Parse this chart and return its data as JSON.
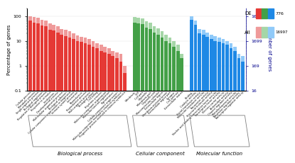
{
  "bp_labels": [
    "Cellular process",
    "Metabolic process",
    "Single-organism process",
    "Biological regulation",
    "Regulation of biological process",
    "Response to stimulus",
    "Localization",
    "Developmental process",
    "Multicellular organismal process",
    "Biological adhesion",
    "Cellular component organization or biogenesis",
    "Immune system process",
    "Locomotion",
    "Reproduction",
    "Reproductive process",
    "Multi-organism process",
    "Biological phase",
    "Cell killing",
    "Rhythmic process",
    "Molecular component organization",
    "Molecular function regulation",
    "Pigmentation",
    "Cellular component organization",
    "Molecular component involved in chemical symbiosis",
    "Prognostic process involved in chemical symbiosis"
  ],
  "bp_de": [
    65,
    55,
    52,
    42,
    38,
    28,
    26,
    22,
    18,
    16,
    14,
    12,
    10,
    9,
    8,
    7,
    6,
    5,
    4,
    3.5,
    3,
    2.5,
    2,
    1.5,
    0.5
  ],
  "bp_all": [
    100,
    90,
    85,
    72,
    65,
    50,
    45,
    38,
    30,
    28,
    24,
    20,
    17,
    15,
    14,
    12,
    10,
    8,
    7,
    6,
    5,
    4,
    3.5,
    3,
    1
  ],
  "cc_labels": [
    "Membrane",
    "Cell",
    "Cell part",
    "Organelle",
    "Membrane part",
    "Organelle part",
    "Macromolecular complex",
    "Extracellular region",
    "Membrane-enclosed lumen",
    "Extracellular region part",
    "Synapse",
    "Cell junction",
    "Extracellular matrix"
  ],
  "cc_de": [
    55,
    50,
    48,
    35,
    30,
    22,
    18,
    14,
    10,
    8,
    6,
    4,
    2
  ],
  "cc_all": [
    90,
    85,
    82,
    60,
    55,
    40,
    32,
    25,
    18,
    14,
    10,
    7,
    3
  ],
  "mf_labels": [
    "Binding",
    "Catalytic activity",
    "Signal transducer activity",
    "Molecular transducer activity",
    "Transporter activity",
    "Structural molecule activity",
    "Nucleic acid binding transcription factor activity",
    "Transcription factor activity",
    "Electron carrier activity",
    "Antioxidant activity",
    "Channel regulator activity",
    "Metallochaperone activity",
    "Translation regulator activity",
    "Transcription regulator activity"
  ],
  "mf_de": [
    70,
    45,
    20,
    18,
    15,
    12,
    10,
    9,
    8,
    7,
    5,
    4,
    2,
    1.5
  ],
  "mf_all": [
    100,
    65,
    30,
    28,
    22,
    18,
    16,
    14,
    12,
    10,
    8,
    6,
    3,
    2.5
  ],
  "de_color_red": "#e53935",
  "all_color_red": "#ef9a9a",
  "de_color_green": "#43a047",
  "all_color_green": "#a5d6a7",
  "de_color_blue": "#1e88e5",
  "all_color_blue": "#90caf9",
  "legend_de_label": "DE",
  "legend_all_label": "All",
  "legend_num1": "776",
  "legend_num2": "16997",
  "xlabel_bp": "Biological process",
  "xlabel_cc": "Cellular component",
  "xlabel_mf": "Molecular function",
  "ylabel_left": "Percentage of genes",
  "ylabel_right": "Number of genes"
}
